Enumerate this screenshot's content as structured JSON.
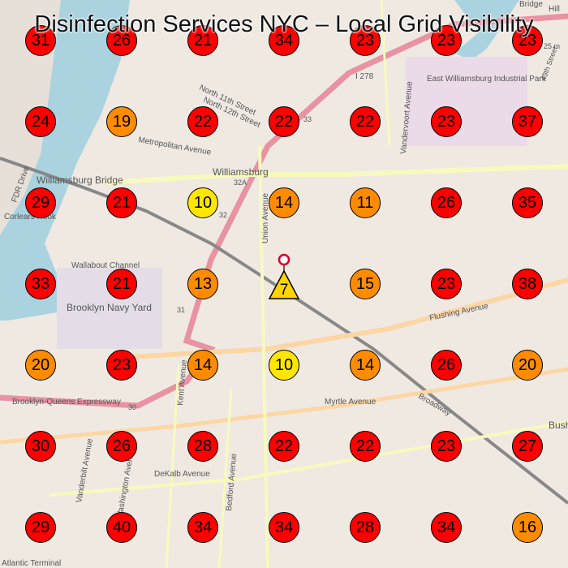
{
  "title": "Disinfection Services NYC – Local Grid Visibility",
  "center_marker": {
    "rank": "7",
    "color": "#ffd400",
    "pin_color": "#d6002b"
  },
  "rank_colors": {
    "top": "#ffe600",
    "mid": "#ff8c00",
    "low": "#ff0000"
  },
  "grid_ranks": [
    [
      31,
      26,
      21,
      34,
      23,
      23,
      23
    ],
    [
      24,
      19,
      22,
      22,
      22,
      23,
      37
    ],
    [
      29,
      21,
      10,
      14,
      11,
      26,
      35
    ],
    [
      33,
      21,
      13,
      7,
      15,
      23,
      38
    ],
    [
      20,
      23,
      14,
      10,
      14,
      26,
      20
    ],
    [
      30,
      26,
      28,
      22,
      22,
      23,
      27
    ],
    [
      29,
      40,
      34,
      34,
      28,
      34,
      16
    ]
  ],
  "map_labels": {
    "williamsburg": "Williamsburg",
    "williamsburg_bridge": "Williamsburg Bridge",
    "east_williamsburg": "East Williamsburg Industrial Park",
    "metropolitan_avenue": "Metropolitan Avenue",
    "flushing_avenue": "Flushing Avenue",
    "myrtle_avenue": "Myrtle Avenue",
    "dekalb_avenue": "DeKalb Avenue",
    "bqe": "Brooklyn-Queens Expressway",
    "brooklyn_navy_yard": "Brooklyn Navy Yard",
    "wallabout_channel": "Wallabout Channel",
    "corlears_hook": "Corlears Hook",
    "union_avenue": "Union Avenue",
    "broadway": "Broadway",
    "kent_avenue": "Kent Avenue",
    "bedford_avenue": "Bedford Avenue",
    "vanderbilt_avenue": "Vanderbilt Avenue",
    "washington_avenue": "Washington Avenue",
    "vandervoort_avenue": "Vandervoort Avenue",
    "north_11th_street": "North 11th Street",
    "north_12th_street": "North 12th Street",
    "i278": "I 278",
    "route_32": "32",
    "route_32a": "32A",
    "route_30": "30",
    "route_31": "31",
    "route_33": "33",
    "fdr_drive": "FDR Drive",
    "atlantic_terminal": "Atlantic Terminal",
    "bush": "Bush",
    "bridge": "Bridge",
    "hill": "Hill",
    "st49": "49th Street",
    "elev": "25 m"
  }
}
